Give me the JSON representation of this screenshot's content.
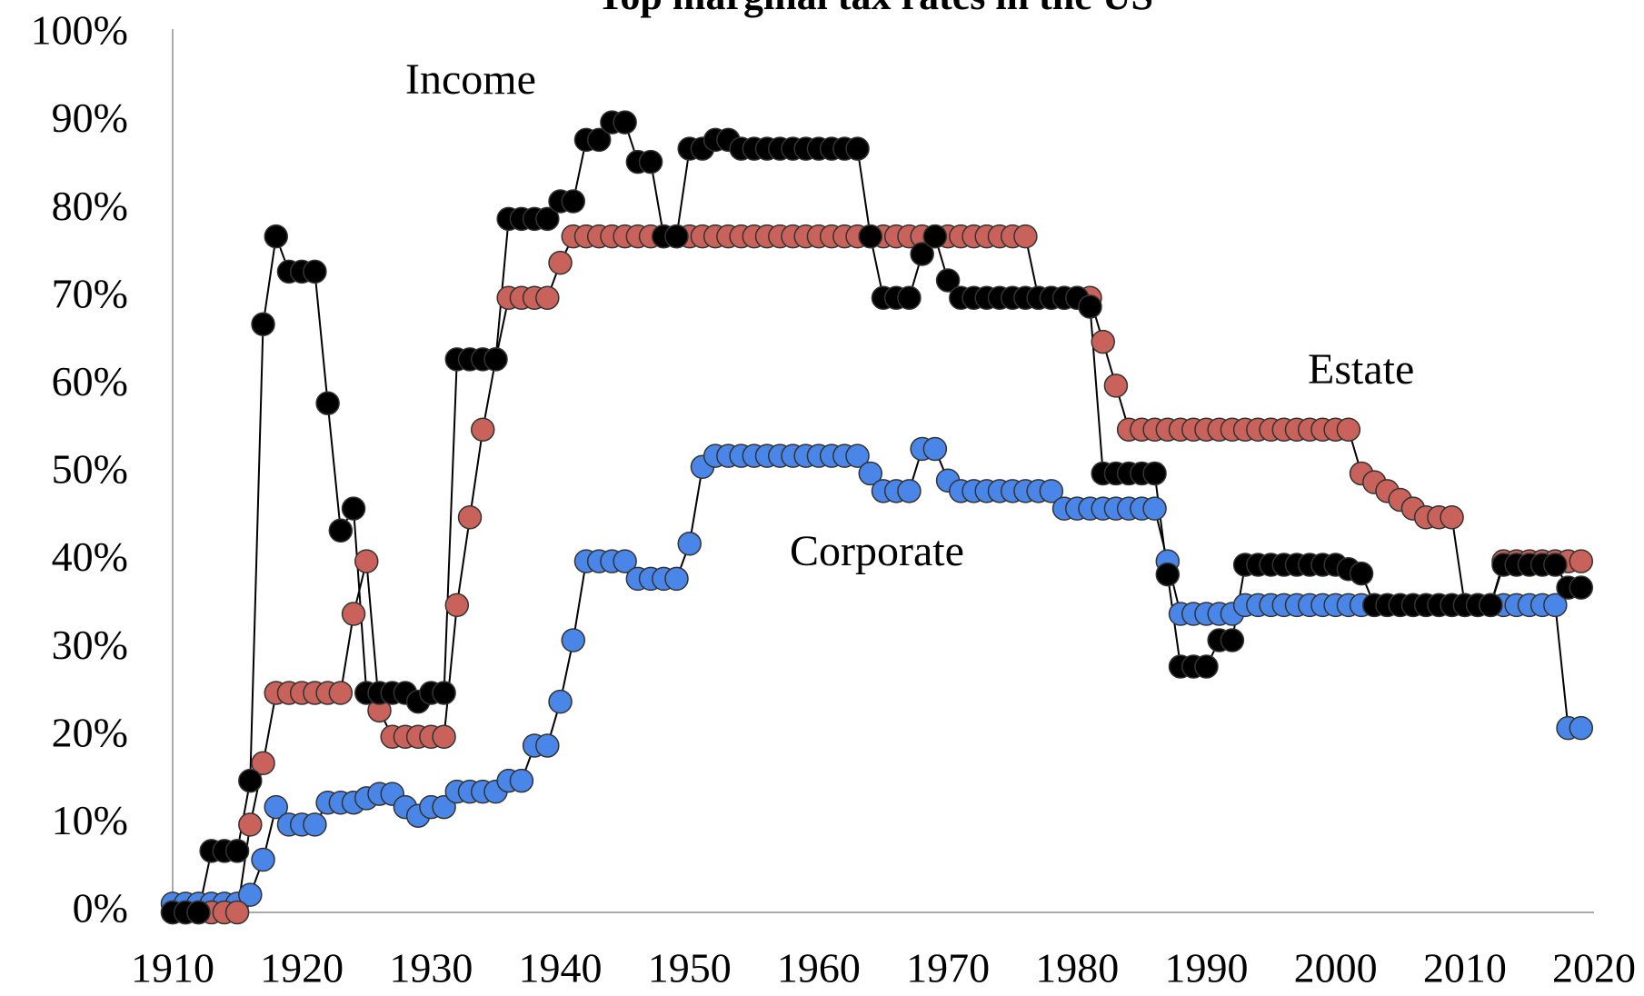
{
  "chart_data": {
    "type": "line",
    "title": "Top marginal tax rates in the US",
    "annotations": [
      "Income",
      "Estate",
      "Corporate"
    ],
    "x": [
      1910,
      1911,
      1912,
      1913,
      1914,
      1915,
      1916,
      1917,
      1918,
      1919,
      1920,
      1921,
      1922,
      1923,
      1924,
      1925,
      1926,
      1927,
      1928,
      1929,
      1930,
      1931,
      1932,
      1933,
      1934,
      1935,
      1936,
      1937,
      1938,
      1939,
      1940,
      1941,
      1942,
      1943,
      1944,
      1945,
      1946,
      1947,
      1948,
      1949,
      1950,
      1951,
      1952,
      1953,
      1954,
      1955,
      1956,
      1957,
      1958,
      1959,
      1960,
      1961,
      1962,
      1963,
      1964,
      1965,
      1966,
      1967,
      1968,
      1969,
      1970,
      1971,
      1972,
      1973,
      1974,
      1975,
      1976,
      1977,
      1978,
      1979,
      1980,
      1981,
      1982,
      1983,
      1984,
      1985,
      1986,
      1987,
      1988,
      1989,
      1990,
      1991,
      1992,
      1993,
      1994,
      1995,
      1996,
      1997,
      1998,
      1999,
      2000,
      2001,
      2002,
      2003,
      2004,
      2005,
      2006,
      2007,
      2008,
      2009,
      2010,
      2011,
      2012,
      2013,
      2014,
      2015,
      2016,
      2017,
      2018,
      2019
    ],
    "series": [
      {
        "name": "Income",
        "color": "#000000",
        "values": [
          0,
          0,
          0,
          7,
          7,
          7,
          15,
          67,
          77,
          73,
          73,
          73,
          58,
          43.5,
          46,
          25,
          25,
          25,
          25,
          24,
          25,
          25,
          63,
          63,
          63,
          63,
          79,
          79,
          79,
          79,
          81,
          81,
          88,
          88,
          90,
          90,
          85.5,
          85.5,
          77,
          77,
          87,
          87,
          88,
          88,
          87,
          87,
          87,
          87,
          87,
          87,
          87,
          87,
          87,
          87,
          77,
          70,
          70,
          70,
          75,
          77,
          72,
          70,
          70,
          70,
          70,
          70,
          70,
          70,
          70,
          70,
          70,
          69,
          50,
          50,
          50,
          50,
          50,
          38.5,
          28,
          28,
          28,
          31,
          31,
          39.6,
          39.6,
          39.6,
          39.6,
          39.6,
          39.6,
          39.6,
          39.6,
          39.1,
          38.6,
          35,
          35,
          35,
          35,
          35,
          35,
          35,
          35,
          35,
          35,
          39.6,
          39.6,
          39.6,
          39.6,
          39.6,
          37,
          37
        ]
      },
      {
        "name": "Estate",
        "color": "#c9625a",
        "values": [
          0,
          0,
          0,
          0,
          0,
          0,
          10,
          17,
          25,
          25,
          25,
          25,
          25,
          25,
          34,
          40,
          23,
          20,
          20,
          20,
          20,
          20,
          35,
          45,
          55,
          63,
          70,
          70,
          70,
          70,
          74,
          77,
          77,
          77,
          77,
          77,
          77,
          77,
          77,
          77,
          77,
          77,
          77,
          77,
          77,
          77,
          77,
          77,
          77,
          77,
          77,
          77,
          77,
          77,
          77,
          77,
          77,
          77,
          77,
          77,
          77,
          77,
          77,
          77,
          77,
          77,
          77,
          70,
          70,
          70,
          70,
          70,
          65,
          60,
          55,
          55,
          55,
          55,
          55,
          55,
          55,
          55,
          55,
          55,
          55,
          55,
          55,
          55,
          55,
          55,
          55,
          55,
          50,
          49,
          48,
          47,
          46,
          45,
          45,
          45,
          35,
          35,
          35,
          40,
          40,
          40,
          40,
          40,
          40,
          40
        ]
      },
      {
        "name": "Corporate",
        "color": "#4a86e8",
        "values": [
          1,
          1,
          1,
          1,
          1,
          1,
          2,
          6,
          12,
          10,
          10,
          10,
          12.5,
          12.5,
          12.5,
          13,
          13.5,
          13.5,
          12,
          11,
          12,
          12,
          13.75,
          13.75,
          13.75,
          13.75,
          15,
          15,
          19,
          19,
          24,
          31,
          40,
          40,
          40,
          40,
          38,
          38,
          38,
          38,
          42,
          50.75,
          52,
          52,
          52,
          52,
          52,
          52,
          52,
          52,
          52,
          52,
          52,
          52,
          50,
          48,
          48,
          48,
          52.8,
          52.8,
          49.2,
          48,
          48,
          48,
          48,
          48,
          48,
          48,
          48,
          46,
          46,
          46,
          46,
          46,
          46,
          46,
          46,
          40,
          34,
          34,
          34,
          34,
          34,
          35,
          35,
          35,
          35,
          35,
          35,
          35,
          35,
          35,
          35,
          35,
          35,
          35,
          35,
          35,
          35,
          35,
          35,
          35,
          35,
          35,
          35,
          35,
          35,
          35,
          21,
          21
        ]
      }
    ],
    "xlim": [
      1910,
      2020
    ],
    "xticks": [
      1910,
      1920,
      1930,
      1940,
      1950,
      1960,
      1970,
      1980,
      1990,
      2000,
      2010,
      2020
    ],
    "ylim": [
      0,
      100
    ],
    "yticks": [
      {
        "value": 0,
        "label": "0%"
      },
      {
        "value": 10,
        "label": "10%"
      },
      {
        "value": 20,
        "label": "20%"
      },
      {
        "value": 30,
        "label": "30%"
      },
      {
        "value": 40,
        "label": "40%"
      },
      {
        "value": 50,
        "label": "50%"
      },
      {
        "value": 60,
        "label": "60%"
      },
      {
        "value": 70,
        "label": "70%"
      },
      {
        "value": 80,
        "label": "80%"
      },
      {
        "value": 90,
        "label": "90%"
      },
      {
        "value": 100,
        "label": "100%"
      }
    ],
    "grid": false
  }
}
